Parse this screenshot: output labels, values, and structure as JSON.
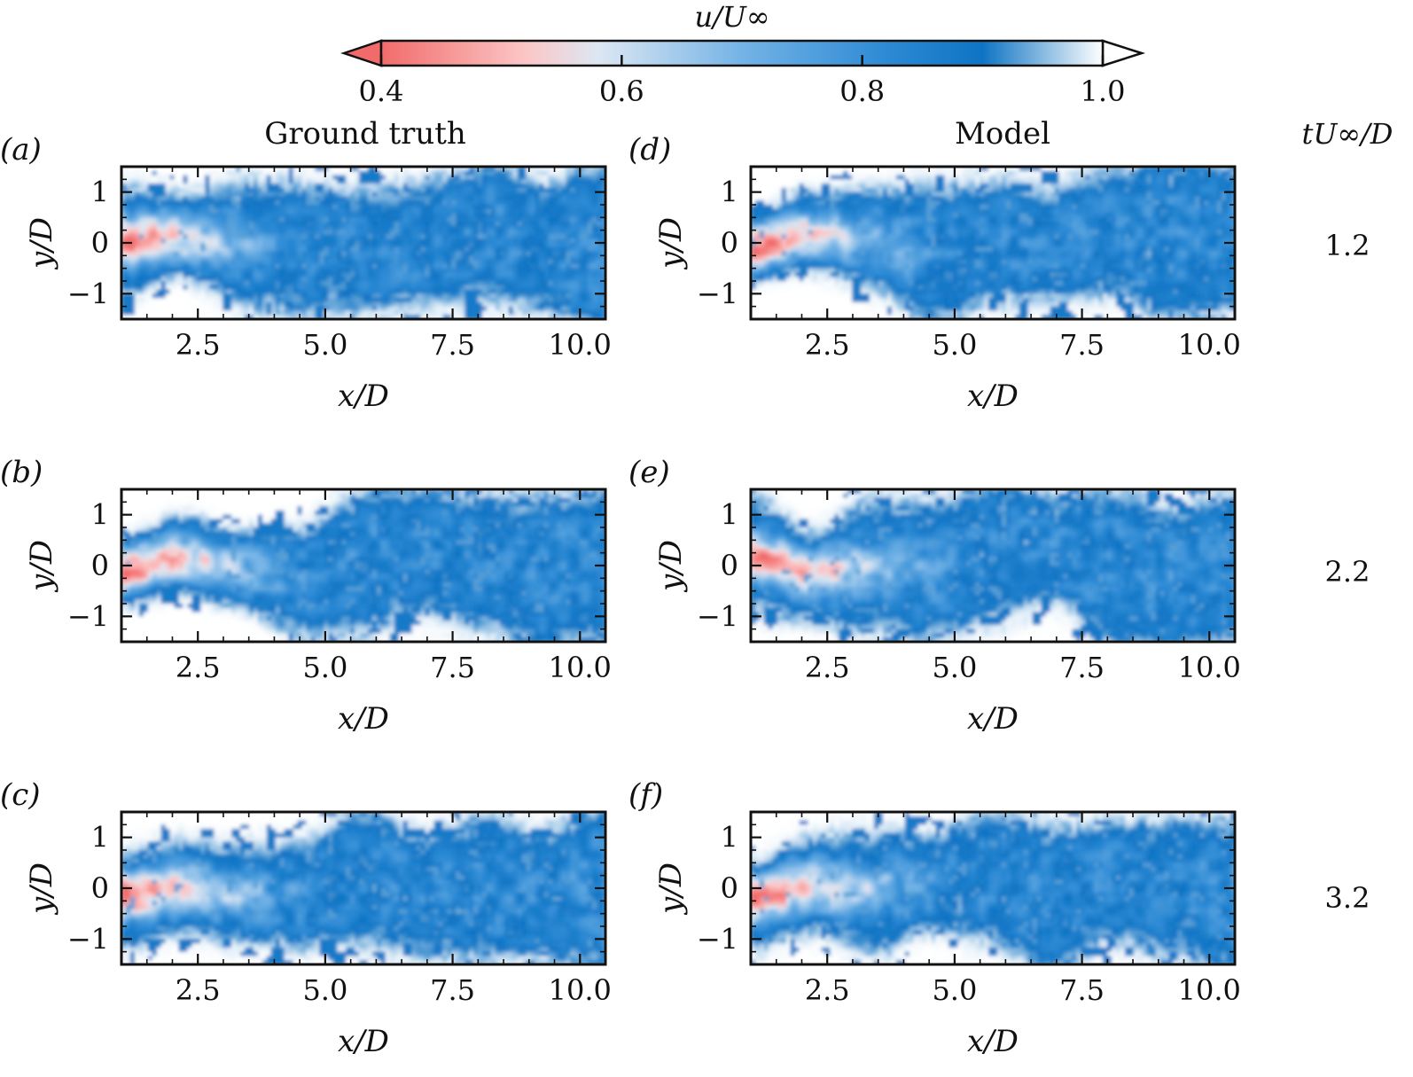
{
  "colorbar": {
    "label": "u/U∞",
    "ticks": [
      "0.4",
      "0.6",
      "0.8",
      "1.0"
    ],
    "tick_values": [
      0.4,
      0.6,
      0.8,
      1.0
    ],
    "range": [
      0.4,
      1.0
    ],
    "extend": "both",
    "colormap": [
      {
        "v": 0.4,
        "color": "#f26b6b"
      },
      {
        "v": 0.52,
        "color": "#fcc6c6"
      },
      {
        "v": 0.58,
        "color": "#dde7f3"
      },
      {
        "v": 0.7,
        "color": "#74b3e6"
      },
      {
        "v": 0.82,
        "color": "#2d8ad4"
      },
      {
        "v": 0.9,
        "color": "#0f74c4"
      },
      {
        "v": 1.0,
        "color": "#ffffff"
      }
    ]
  },
  "column_titles": [
    "Ground truth",
    "Model"
  ],
  "row_header": "tU∞/D",
  "row_values": [
    "1.2",
    "2.2",
    "3.2"
  ],
  "panels": [
    {
      "label": "(a)",
      "letter": "a",
      "row": 0,
      "col": 0,
      "source": "ground-truth",
      "time": "1.2"
    },
    {
      "label": "(d)",
      "letter": "d",
      "row": 0,
      "col": 1,
      "source": "model",
      "time": "1.2"
    },
    {
      "label": "(b)",
      "letter": "b",
      "row": 1,
      "col": 0,
      "source": "ground-truth",
      "time": "2.2"
    },
    {
      "label": "(e)",
      "letter": "e",
      "row": 1,
      "col": 1,
      "source": "model",
      "time": "2.2"
    },
    {
      "label": "(c)",
      "letter": "c",
      "row": 2,
      "col": 0,
      "source": "ground-truth",
      "time": "3.2"
    },
    {
      "label": "(f)",
      "letter": "f",
      "row": 2,
      "col": 1,
      "source": "model",
      "time": "3.2"
    }
  ],
  "chart_data": {
    "type": "heatmap",
    "title": "",
    "quantity": "u/U∞",
    "xlabel": "x/D",
    "ylabel": "y/D",
    "xlim": [
      1.0,
      10.5
    ],
    "ylim": [
      -1.5,
      1.5
    ],
    "xticks": [
      2.5,
      5.0,
      7.5,
      10.0
    ],
    "xtick_labels": [
      "2.5",
      "5.0",
      "7.5",
      "10.0"
    ],
    "yticks": [
      1,
      0,
      -1
    ],
    "ytick_labels": [
      "1",
      "0",
      "−1"
    ],
    "description_of_fields": {
      "freestream": 1.0,
      "wake_core_min": 0.4,
      "deficit_region_x_end_ground_truth": [
        4.0,
        4.5,
        4.5
      ],
      "deficit_region_x_end_model": [
        4.5,
        5.0,
        4.5
      ],
      "wake_halfwidth_near": 0.8,
      "wake_halfwidth_far": 1.3
    }
  }
}
